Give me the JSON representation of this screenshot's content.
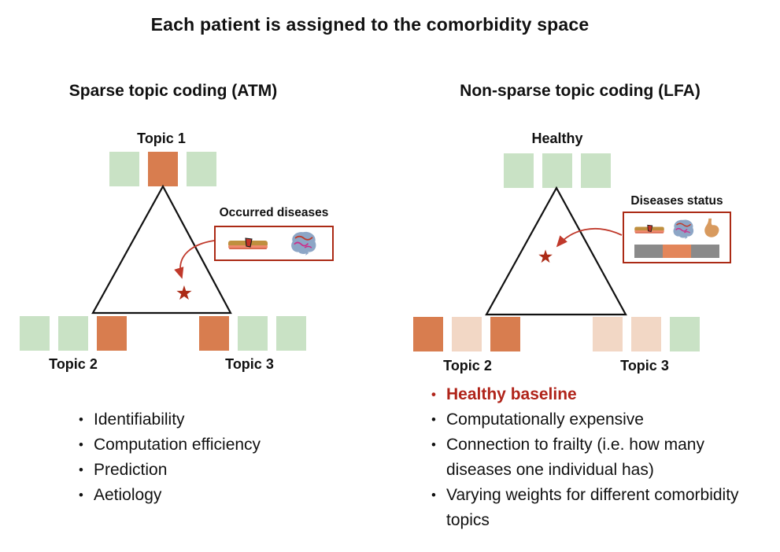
{
  "title": "Each patient is assigned to the comorbidity space",
  "colors": {
    "high": "#d87d4f",
    "low": "#c9e2c5",
    "mid": "#f2d7c5",
    "accent": "#ab2a15",
    "arrow": "#c0392b",
    "redtext": "#b0241a",
    "bargray": "#8a8a8a",
    "barorange": "#e3865a"
  },
  "panels": {
    "atm": {
      "header": "Sparse topic coding (ATM)",
      "topics": {
        "top": "Topic 1",
        "left": "Topic 2",
        "right": "Topic 3"
      },
      "weights": {
        "top": [
          "low",
          "high",
          "low"
        ],
        "left": [
          "low",
          "low",
          "high"
        ],
        "right": [
          "high",
          "low",
          "low"
        ]
      },
      "callout": {
        "label": "Occurred diseases",
        "icons": [
          "skin-lesion",
          "brain"
        ]
      },
      "bullets": [
        "Identifiability",
        "Computation efficiency",
        "Prediction",
        "Aetiology"
      ]
    },
    "lfa": {
      "header": "Non-sparse topic coding (LFA)",
      "topics": {
        "top": "Healthy",
        "left": "Topic 2",
        "right": "Topic 3"
      },
      "weights": {
        "top": [
          "low",
          "low",
          "low"
        ],
        "left": [
          "high",
          "mid",
          "high"
        ],
        "right": [
          "mid",
          "mid",
          "low"
        ]
      },
      "callout": {
        "label": "Diseases status",
        "icons": [
          "skin-lesion",
          "brain",
          "stomach"
        ],
        "status_bar": [
          "gray",
          "orange",
          "gray"
        ]
      },
      "bullets": [
        {
          "text": "Healthy baseline",
          "highlight": true
        },
        {
          "text": "Computationally expensive",
          "highlight": false
        },
        {
          "text": "Connection to frailty (i.e. how many diseases one individual has)",
          "highlight": false
        },
        {
          "text": "Varying weights for different comorbidity topics",
          "highlight": false
        }
      ]
    }
  }
}
